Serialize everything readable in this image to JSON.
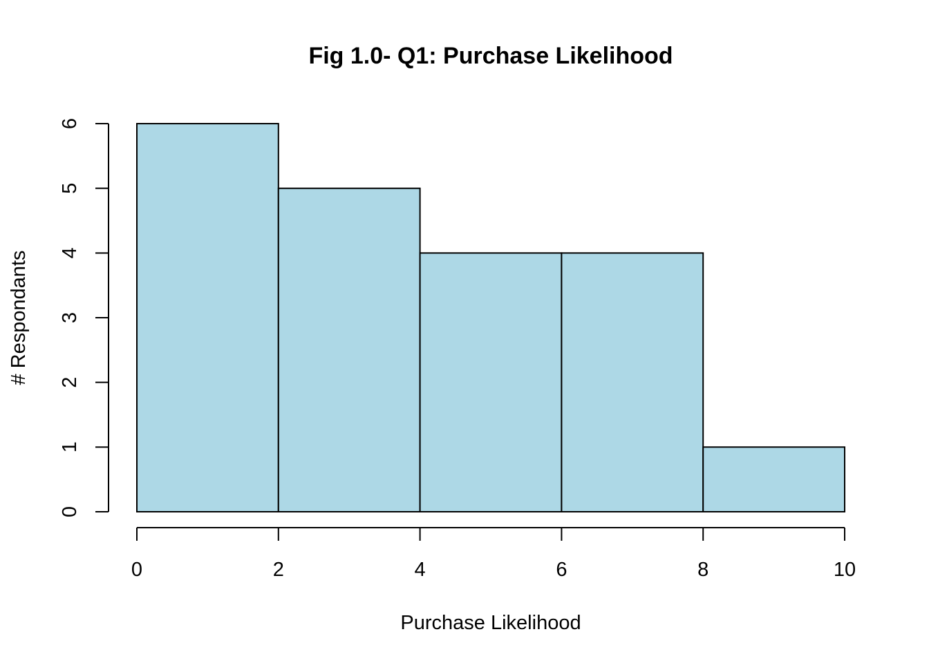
{
  "chart_data": {
    "type": "bar",
    "title": "Fig 1.0- Q1: Purchase Likelihood",
    "xlabel": "Purchase Likelihood",
    "ylabel": "# Respondants",
    "bins": [
      {
        "from": 0,
        "to": 2,
        "count": 6
      },
      {
        "from": 2,
        "to": 4,
        "count": 5
      },
      {
        "from": 4,
        "to": 6,
        "count": 4
      },
      {
        "from": 6,
        "to": 8,
        "count": 4
      },
      {
        "from": 8,
        "to": 10,
        "count": 1
      }
    ],
    "xlim": [
      0,
      10
    ],
    "ylim": [
      0,
      6
    ],
    "x_ticks": [
      "0",
      "2",
      "4",
      "6",
      "8",
      "10"
    ],
    "y_ticks": [
      "0",
      "1",
      "2",
      "3",
      "4",
      "5",
      "6"
    ],
    "bar_color": "#ADD8E6",
    "grid": false
  }
}
